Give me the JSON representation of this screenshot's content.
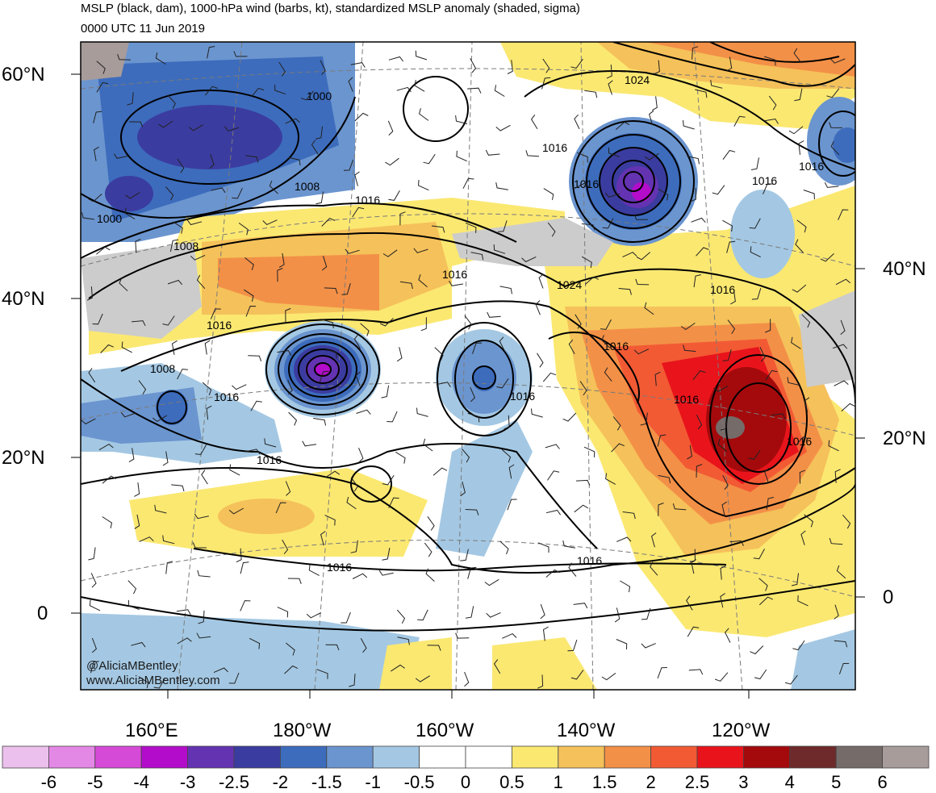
{
  "header": {
    "title": "MSLP (black, dam), 1000-hPa wind (barbs, kt), standardized MSLP anomaly (shaded, sigma)",
    "valid_time": "0000 UTC 11 Jun 2019"
  },
  "axes": {
    "lat_left": [
      "60°N",
      "40°N",
      "20°N",
      "0"
    ],
    "lat_right": [
      "40°N",
      "20°N",
      "0"
    ],
    "lon_bottom": [
      "160°E",
      "180°W",
      "160°W",
      "140°W",
      "120°W"
    ]
  },
  "isobar_labels": [
    "1000",
    "1000",
    "1008",
    "1008",
    "1016",
    "1016",
    "1016",
    "1008",
    "1016",
    "1016",
    "1016",
    "1016",
    "1024",
    "1016",
    "1016",
    "1016",
    "1016",
    "1024",
    "1016",
    "1016",
    "1016"
  ],
  "colorbar": {
    "labels": [
      "-6",
      "-5",
      "-4",
      "-3",
      "-2.5",
      "-2",
      "-1.5",
      "-1",
      "-0.5",
      "0",
      "0.5",
      "1",
      "1.5",
      "2",
      "2.5",
      "3",
      "4",
      "5",
      "6"
    ],
    "colors": [
      "#ecc0ec",
      "#e488e6",
      "#d64ad8",
      "#b30ccb",
      "#6433b2",
      "#3b3ca0",
      "#3d6cbc",
      "#6b95cf",
      "#a4c8e3",
      "#ffffff",
      "#ffffff",
      "#fbe871",
      "#f5c15a",
      "#f39047",
      "#f25a34",
      "#e9141b",
      "#a40a0c",
      "#6e2a2a",
      "#756b68",
      "#a79c9a"
    ]
  },
  "credits": {
    "handle": "@AliciaMBentley",
    "website": "www.AliciaMBentley.com"
  }
}
